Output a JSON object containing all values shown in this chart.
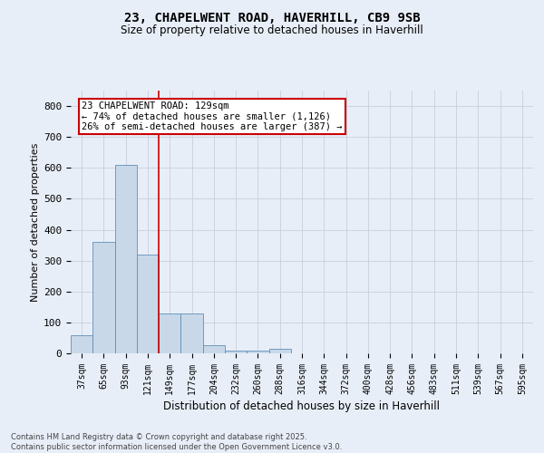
{
  "title1": "23, CHAPELWENT ROAD, HAVERHILL, CB9 9SB",
  "title2": "Size of property relative to detached houses in Haverhill",
  "xlabel": "Distribution of detached houses by size in Haverhill",
  "ylabel": "Number of detached properties",
  "categories": [
    "37sqm",
    "65sqm",
    "93sqm",
    "121sqm",
    "149sqm",
    "177sqm",
    "204sqm",
    "232sqm",
    "260sqm",
    "288sqm",
    "316sqm",
    "344sqm",
    "372sqm",
    "400sqm",
    "428sqm",
    "456sqm",
    "483sqm",
    "511sqm",
    "539sqm",
    "567sqm",
    "595sqm"
  ],
  "values": [
    60,
    360,
    610,
    320,
    130,
    130,
    25,
    10,
    10,
    15,
    0,
    0,
    0,
    0,
    0,
    0,
    0,
    0,
    0,
    0,
    0
  ],
  "bar_color": "#c8d8e8",
  "bar_edge_color": "#6090b8",
  "property_bin_index": 3,
  "annotation_text": "23 CHAPELWENT ROAD: 129sqm\n← 74% of detached houses are smaller (1,126)\n26% of semi-detached houses are larger (387) →",
  "annotation_box_color": "#ffffff",
  "annotation_box_edge": "#cc0000",
  "vline_color": "#cc0000",
  "grid_color": "#c8d0dc",
  "background_color": "#e8eef8",
  "ylim": [
    0,
    850
  ],
  "yticks": [
    0,
    100,
    200,
    300,
    400,
    500,
    600,
    700,
    800
  ],
  "footer1": "Contains HM Land Registry data © Crown copyright and database right 2025.",
  "footer2": "Contains public sector information licensed under the Open Government Licence v3.0."
}
